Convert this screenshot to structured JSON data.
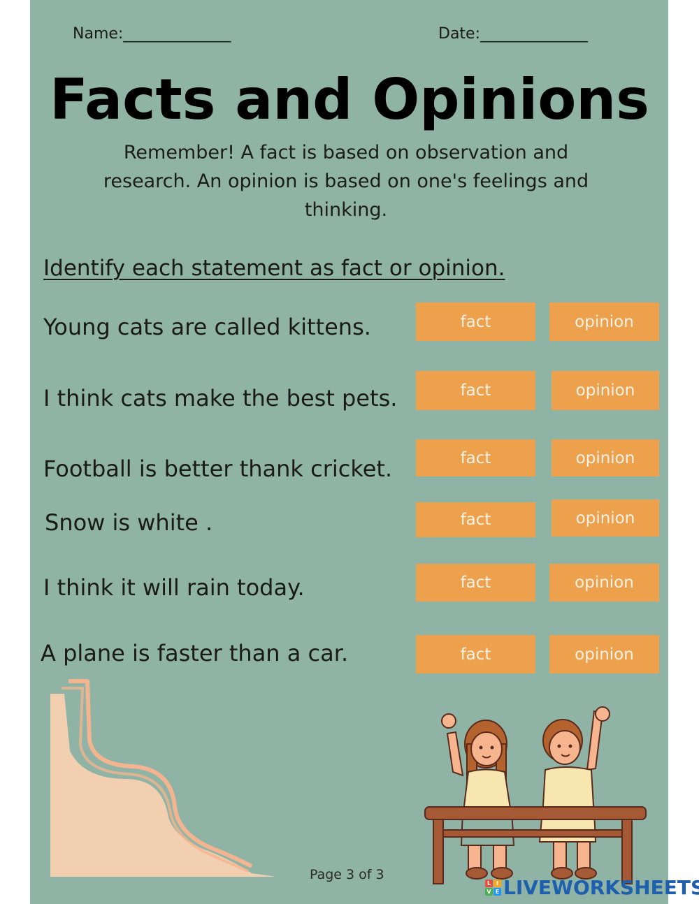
{
  "header": {
    "name_label": "Name:______________",
    "date_label": "Date:______________"
  },
  "title": "Facts and Opinions",
  "remember_text": "Remember! A fact is based on observation and research. An opinion is based on one's feelings and thinking.",
  "instruction": "Identify each statement as fact or opinion.",
  "statements": [
    {
      "text": "Young cats are called kittens.",
      "fact_label": "fact",
      "opinion_label": "opinion"
    },
    {
      "text": "I think cats make the best pets.",
      "fact_label": "fact",
      "opinion_label": "opinion"
    },
    {
      "text": "Football is better thank cricket.",
      "fact_label": "fact",
      "opinion_label": "opinion"
    },
    {
      "text": "Snow is white .",
      "fact_label": "fact",
      "opinion_label": "opinion"
    },
    {
      "text": "I think it will rain today.",
      "fact_label": "fact",
      "opinion_label": "opinion"
    },
    {
      "text": "A plane is faster than a car.",
      "fact_label": "fact",
      "opinion_label": "opinion"
    }
  ],
  "footer": {
    "page_label": "Page 3 of 3",
    "brand": "LIVEWORKSHEETS",
    "brand_logo_letters": [
      "L",
      "I",
      "V",
      "E"
    ]
  },
  "colors": {
    "background": "#8fb4a6",
    "button": "#eea14c",
    "button_text": "#fbf1e4",
    "brand": "#1e5fae"
  },
  "icons": {
    "decor": "peach-ribbon-decoration",
    "illustration": "children-raising-hands-on-bench"
  }
}
